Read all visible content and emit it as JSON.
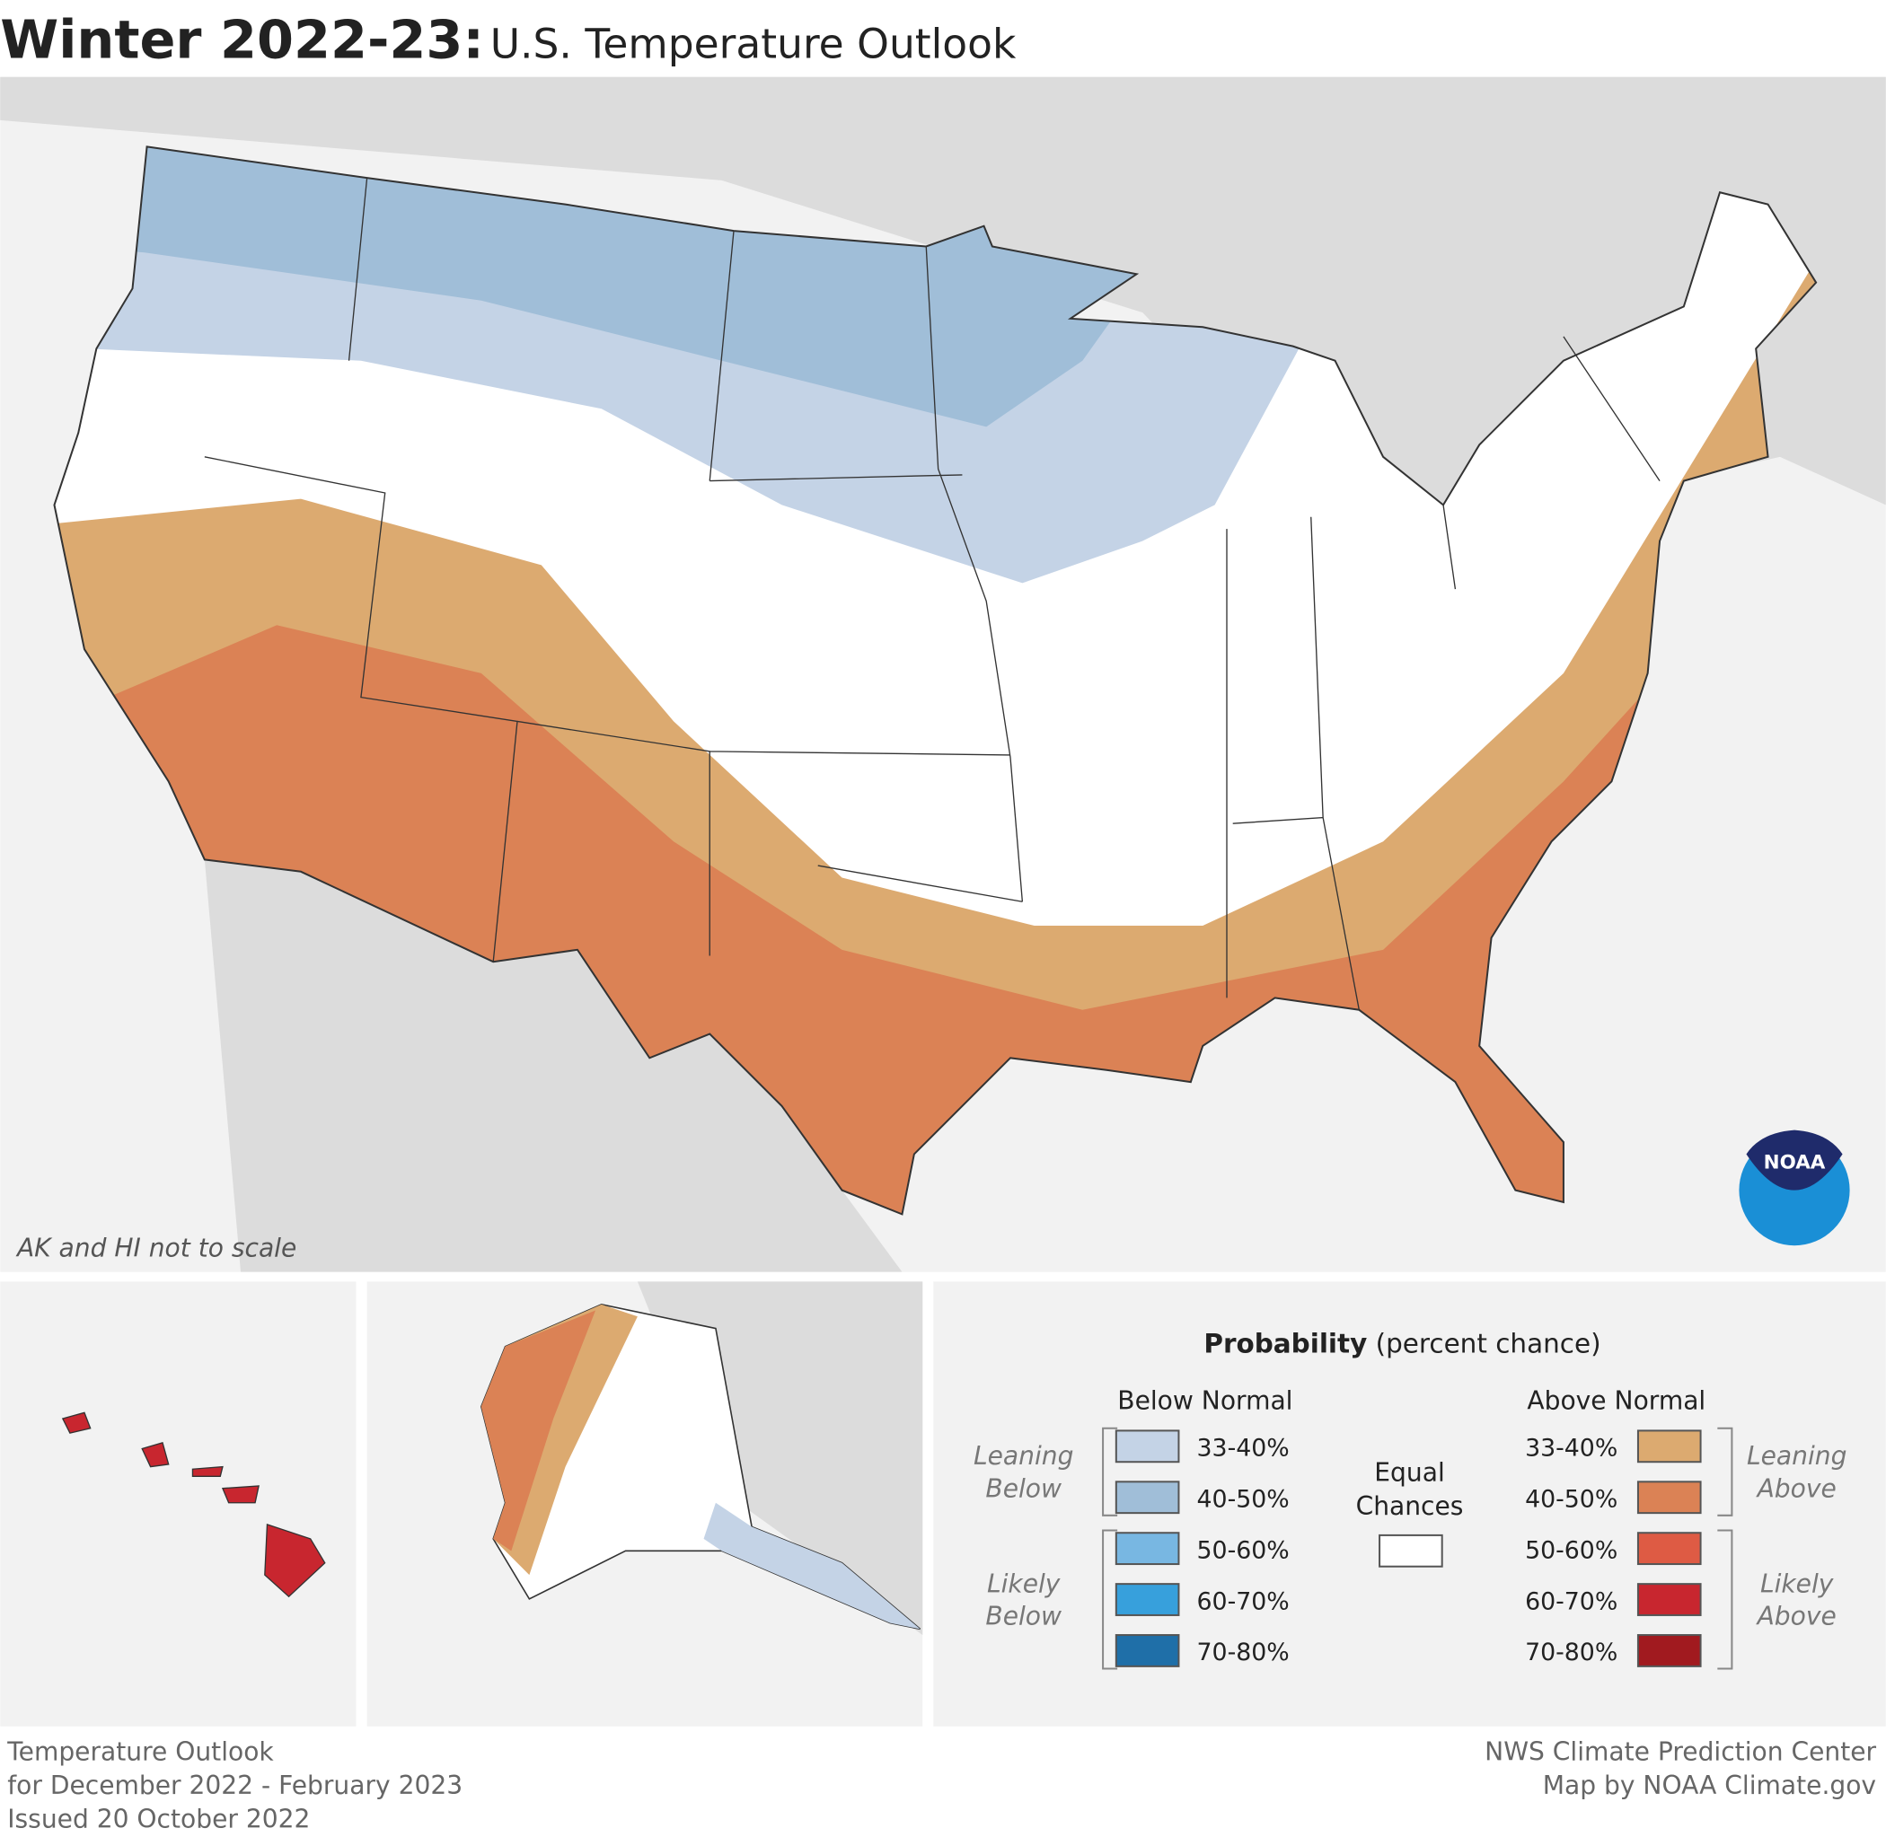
{
  "header": {
    "title": "Winter 2022-23:",
    "subtitle": "U.S. Temperature Outlook"
  },
  "map": {
    "note": "AK and HI not to scale",
    "logo": "NOAA"
  },
  "legend": {
    "title": "Probability",
    "title_note": "(percent chance)",
    "below": {
      "heading": "Below Normal",
      "groups": [
        {
          "lines": [
            "Leaning",
            "Below"
          ],
          "items": [
            0,
            1
          ]
        },
        {
          "lines": [
            "Likely",
            "Below"
          ],
          "items": [
            2,
            4
          ]
        }
      ],
      "items": [
        {
          "label": "33-40%",
          "color": "#c4d3e6"
        },
        {
          "label": "40-50%",
          "color": "#a0bed8"
        },
        {
          "label": "50-60%",
          "color": "#78b7e2"
        },
        {
          "label": "60-70%",
          "color": "#37a0dc"
        },
        {
          "label": "70-80%",
          "color": "#1f6fa8"
        }
      ]
    },
    "equal": {
      "lines": [
        "Equal",
        "Chances"
      ],
      "color": "#ffffff"
    },
    "above": {
      "heading": "Above Normal",
      "groups": [
        {
          "lines": [
            "Leaning",
            "Above"
          ],
          "items": [
            0,
            1
          ]
        },
        {
          "lines": [
            "Likely",
            "Above"
          ],
          "items": [
            2,
            4
          ]
        }
      ],
      "items": [
        {
          "label": "33-40%",
          "color": "#dcaa70"
        },
        {
          "label": "40-50%",
          "color": "#db8255"
        },
        {
          "label": "50-60%",
          "color": "#de5b44"
        },
        {
          "label": "60-70%",
          "color": "#c8262f"
        },
        {
          "label": "70-80%",
          "color": "#a11a1f"
        }
      ]
    }
  },
  "footer": {
    "left": [
      "Temperature Outlook",
      "for December 2022 - February 2023",
      "Issued 20 October 2022"
    ],
    "right": [
      "NWS Climate Prediction Center",
      "Map by NOAA Climate.gov"
    ]
  }
}
